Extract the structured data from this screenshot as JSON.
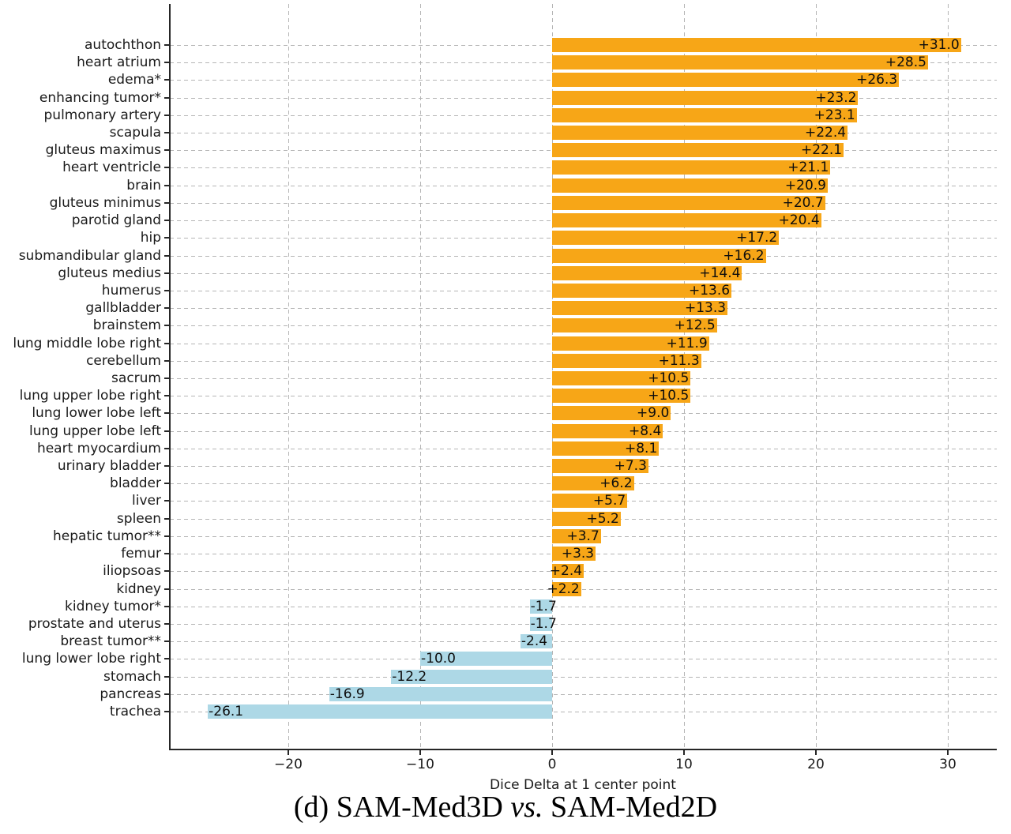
{
  "figure": {
    "caption": {
      "prefix": "(d) SAM-Med3D ",
      "italic": "vs.",
      "suffix": " SAM-Med2D"
    }
  },
  "chart_data": {
    "type": "bar",
    "orientation": "horizontal",
    "title": "",
    "xlabel": "Dice Delta at 1 center point",
    "ylabel": "",
    "xlim": [
      -29,
      33.7
    ],
    "x_ticks": [
      -20,
      -10,
      0,
      10,
      20,
      30
    ],
    "x_tick_labels": [
      "−20",
      "−10",
      "0",
      "10",
      "20",
      "30"
    ],
    "grid": {
      "style": "dashed",
      "axes": "both",
      "color": "#b5b5b5"
    },
    "legend": "none",
    "categories": [
      "autochthon",
      "heart atrium",
      "edema*",
      "enhancing tumor*",
      "pulmonary artery",
      "scapula",
      "gluteus maximus",
      "heart ventricle",
      "brain",
      "gluteus minimus",
      "parotid gland",
      "hip",
      "submandibular gland",
      "gluteus medius",
      "humerus",
      "gallbladder",
      "brainstem",
      "lung middle lobe right",
      "cerebellum",
      "sacrum",
      "lung upper lobe right",
      "lung lower lobe left",
      "lung upper lobe left",
      "heart myocardium",
      "urinary bladder",
      "bladder",
      "liver",
      "spleen",
      "hepatic tumor**",
      "femur",
      "iliopsoas",
      "kidney",
      "kidney tumor*",
      "prostate and uterus",
      "breast tumor**",
      "lung lower lobe right",
      "stomach",
      "pancreas",
      "trachea"
    ],
    "values": [
      31.0,
      28.5,
      26.3,
      23.2,
      23.1,
      22.4,
      22.1,
      21.1,
      20.9,
      20.7,
      20.4,
      17.2,
      16.2,
      14.4,
      13.6,
      13.3,
      12.5,
      11.9,
      11.3,
      10.5,
      10.5,
      9.0,
      8.4,
      8.1,
      7.3,
      6.2,
      5.7,
      5.2,
      3.7,
      3.3,
      2.4,
      2.2,
      -1.7,
      -1.7,
      -2.4,
      -10.0,
      -12.2,
      -16.9,
      -26.1
    ],
    "value_labels": [
      "+31.0",
      "+28.5",
      "+26.3",
      "+23.2",
      "+23.1",
      "+22.4",
      "+22.1",
      "+21.1",
      "+20.9",
      "+20.7",
      "+20.4",
      "+17.2",
      "+16.2",
      "+14.4",
      "+13.6",
      "+13.3",
      "+12.5",
      "+11.9",
      "+11.3",
      "+10.5",
      "+10.5",
      "+9.0",
      "+8.4",
      "+8.1",
      "+7.3",
      "+6.2",
      "+5.7",
      "+5.2",
      "+3.7",
      "+3.3",
      "+2.4",
      "+2.2",
      "-1.7",
      "-1.7",
      "-2.4",
      "-10.0",
      "-12.2",
      "-16.9",
      "-26.1"
    ],
    "colors": {
      "positive_bar": "#F7A617",
      "negative_bar": "#ADD8E6",
      "value_text": "#0d0d0d",
      "axis": "#262626",
      "grid": "#b5b5b5"
    }
  }
}
